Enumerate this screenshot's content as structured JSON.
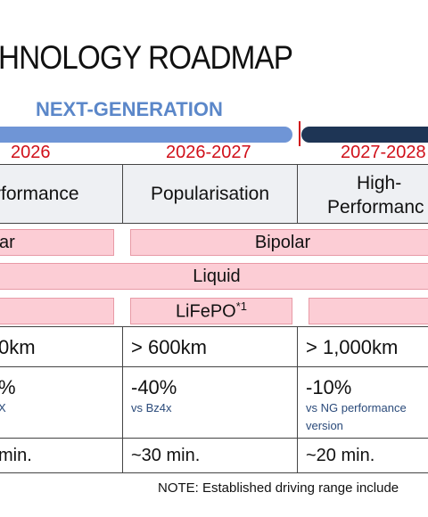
{
  "title": "HNOLOGY ROADMAP",
  "phase_label": "NEXT-GENERATION",
  "years": [
    "2026",
    "2026-2027",
    "2027-2028"
  ],
  "headers": {
    "col1": "rformance",
    "col2": "Popularisation",
    "col3_line1": "High-",
    "col3_line2": "Performanc"
  },
  "rows": {
    "structure": {
      "col1": "ar",
      "col2": "Bipolar"
    },
    "electrolyte": {
      "label": "Liquid"
    },
    "chemistry": {
      "col2": "LiFePO",
      "col2_sup": "*1"
    },
    "range": {
      "col1": "0km",
      "col2": "> 600km",
      "col3": "> 1,000km"
    },
    "cost": {
      "col1": "%",
      "col1_sub": "X",
      "col2": "-40%",
      "col2_sub": "vs Bz4x",
      "col3": "-10%",
      "col3_sub_line1": "vs NG performance",
      "col3_sub_line2": "version"
    },
    "charging": {
      "col1": "min.",
      "col2": "~30 min.",
      "col3": "~20 min."
    }
  },
  "note": "NOTE: Established driving range include",
  "colors": {
    "phase_text": "#5b87c9",
    "bar_light": "#6f95d6",
    "bar_dark": "#1e3555",
    "year_red": "#d0101a",
    "pill_fill": "#fccdd5",
    "header_bg": "#eef0f3",
    "sub_text": "#2a4a7a"
  }
}
